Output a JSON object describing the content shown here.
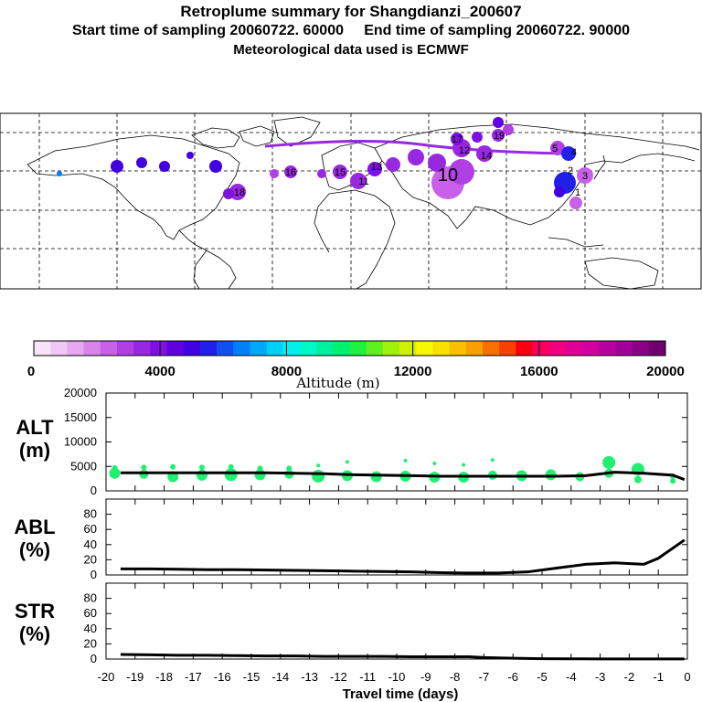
{
  "header": {
    "title": "Retroplume summary for Shangdianzi_200607",
    "subtitle": "Start time of sampling 20060722. 60000     End time of sampling 20060722. 90000",
    "met_line": "Meteorological data used is ECMWF"
  },
  "colorbar": {
    "label": "Altitude (m)",
    "ticks": [
      "0",
      "4000",
      "8000",
      "12000",
      "16000",
      "20000"
    ],
    "range": [
      0,
      20000
    ],
    "colors": [
      "#f8e4f8",
      "#f0c8f4",
      "#e6a8f0",
      "#d884ec",
      "#c860e8",
      "#b040e4",
      "#9828e0",
      "#8010e0",
      "#6000e0",
      "#4000e0",
      "#2020e8",
      "#1050f0",
      "#0080f8",
      "#00a8f8",
      "#00d0f8",
      "#00f0f0",
      "#00f8c8",
      "#00f0a0",
      "#00f070",
      "#20f040",
      "#60f020",
      "#a0f010",
      "#d0f000",
      "#f8f800",
      "#f8e000",
      "#f8c000",
      "#f8a000",
      "#f87000",
      "#f84000",
      "#f80010",
      "#f80060",
      "#f00080",
      "#e00098",
      "#d000a0",
      "#b800a0",
      "#a00098",
      "#880088",
      "#700070"
    ]
  },
  "map_markers": [
    {
      "label": "10"
    },
    {
      "label": "11"
    },
    {
      "label": "12"
    },
    {
      "label": "13"
    },
    {
      "label": "14"
    },
    {
      "label": "15"
    },
    {
      "label": "16"
    },
    {
      "label": "17"
    },
    {
      "label": "18"
    },
    {
      "label": "19"
    },
    {
      "label": "5"
    },
    {
      "label": "4"
    },
    {
      "label": "3"
    },
    {
      "label": "2"
    },
    {
      "label": "1"
    }
  ],
  "chart_data": [
    {
      "type": "line",
      "panel": "ALT",
      "ylabel": "ALT\n(m)",
      "ylabel_line1": "ALT",
      "ylabel_line2": "(m)",
      "ylim": [
        0,
        20000
      ],
      "yticks": [
        0,
        5000,
        10000,
        15000,
        20000
      ],
      "x": [
        -19.5,
        -18.5,
        -17.5,
        -16.5,
        -15.5,
        -14.5,
        -13.5,
        -12.5,
        -11.5,
        -10.5,
        -9.5,
        -8.5,
        -7.5,
        -6.5,
        -5.5,
        -4.5,
        -3.5,
        -2.5,
        -1.5,
        -0.5,
        -0.1
      ],
      "series": [
        {
          "name": "mean altitude",
          "values": [
            3700,
            3700,
            3700,
            3700,
            3700,
            3700,
            3600,
            3500,
            3300,
            3200,
            3100,
            3000,
            3000,
            3000,
            3000,
            3000,
            3100,
            3800,
            3600,
            3200,
            2300
          ]
        }
      ],
      "scatter": [
        {
          "x": -19.7,
          "y": 3600,
          "s": 6
        },
        {
          "x": -19.7,
          "y": 4700,
          "s": 3
        },
        {
          "x": -18.7,
          "y": 3400,
          "s": 5
        },
        {
          "x": -18.7,
          "y": 4800,
          "s": 3
        },
        {
          "x": -17.7,
          "y": 2900,
          "s": 6
        },
        {
          "x": -17.7,
          "y": 4900,
          "s": 3
        },
        {
          "x": -16.7,
          "y": 3200,
          "s": 6
        },
        {
          "x": -16.7,
          "y": 4800,
          "s": 3
        },
        {
          "x": -15.7,
          "y": 3300,
          "s": 7
        },
        {
          "x": -15.7,
          "y": 4900,
          "s": 3
        },
        {
          "x": -14.7,
          "y": 3300,
          "s": 6
        },
        {
          "x": -14.7,
          "y": 4600,
          "s": 3
        },
        {
          "x": -13.7,
          "y": 3400,
          "s": 5
        },
        {
          "x": -13.7,
          "y": 4600,
          "s": 3
        },
        {
          "x": -12.7,
          "y": 3000,
          "s": 7
        },
        {
          "x": -12.7,
          "y": 5200,
          "s": 2
        },
        {
          "x": -11.7,
          "y": 3100,
          "s": 6
        },
        {
          "x": -11.7,
          "y": 5900,
          "s": 2
        },
        {
          "x": -10.7,
          "y": 2900,
          "s": 6
        },
        {
          "x": -9.7,
          "y": 6200,
          "s": 2
        },
        {
          "x": -9.7,
          "y": 3000,
          "s": 6
        },
        {
          "x": -8.7,
          "y": 2800,
          "s": 6
        },
        {
          "x": -8.7,
          "y": 5600,
          "s": 2
        },
        {
          "x": -7.7,
          "y": 2800,
          "s": 6
        },
        {
          "x": -7.7,
          "y": 5300,
          "s": 2
        },
        {
          "x": -6.7,
          "y": 3200,
          "s": 5
        },
        {
          "x": -6.7,
          "y": 6300,
          "s": 2
        },
        {
          "x": -5.7,
          "y": 3100,
          "s": 6
        },
        {
          "x": -4.7,
          "y": 3300,
          "s": 6
        },
        {
          "x": -3.7,
          "y": 2900,
          "s": 5
        },
        {
          "x": -2.7,
          "y": 3600,
          "s": 5
        },
        {
          "x": -2.7,
          "y": 5800,
          "s": 7
        },
        {
          "x": -1.7,
          "y": 4400,
          "s": 7
        },
        {
          "x": -1.7,
          "y": 2300,
          "s": 4
        },
        {
          "x": -0.5,
          "y": 3000,
          "s": 3
        },
        {
          "x": -0.5,
          "y": 2000,
          "s": 3
        }
      ]
    },
    {
      "type": "line",
      "panel": "ABL",
      "ylabel": "ABL\n(%)",
      "ylabel_line1": "ABL",
      "ylabel_line2": "(%)",
      "ylim": [
        0,
        100
      ],
      "yticks": [
        0,
        20,
        40,
        60,
        80
      ],
      "x": [
        -19.5,
        -18.5,
        -17.5,
        -16.5,
        -15.5,
        -14.5,
        -13.5,
        -12.5,
        -11.5,
        -10.5,
        -9.5,
        -8.5,
        -7.5,
        -6.5,
        -5.5,
        -4.5,
        -3.5,
        -2.5,
        -1.5,
        -1.0,
        -0.1
      ],
      "series": [
        {
          "name": "ABL fraction",
          "values": [
            8,
            8,
            7.5,
            7,
            7,
            6.5,
            6,
            5.5,
            5,
            4.5,
            4,
            3,
            2.5,
            2.5,
            4,
            9,
            14,
            16,
            14,
            22,
            46
          ]
        }
      ]
    },
    {
      "type": "line",
      "panel": "STR",
      "ylabel": "STR\n(%)",
      "ylabel_line1": "STR",
      "ylabel_line2": "(%)",
      "ylim": [
        0,
        100
      ],
      "yticks": [
        0,
        20,
        40,
        60,
        80
      ],
      "x": [
        -19.5,
        -18.5,
        -17.5,
        -16.5,
        -15.5,
        -14.5,
        -13.5,
        -12.5,
        -11.5,
        -10.5,
        -9.5,
        -8.5,
        -7.5,
        -7.0,
        -6.0,
        -5.0,
        -4.0,
        -3.0,
        -2.0,
        -1.0,
        -0.1
      ],
      "series": [
        {
          "name": "stratospheric fraction",
          "values": [
            6,
            5.5,
            5,
            5,
            4.5,
            4,
            4,
            3.5,
            3.5,
            3.5,
            3,
            3,
            3,
            2,
            1,
            0.5,
            0.3,
            0.2,
            0.1,
            0.1,
            0.1
          ]
        }
      ]
    }
  ],
  "x_axis": {
    "xlabel": "Travel time (days)",
    "range": [
      -20,
      0
    ],
    "ticks": [
      "-20",
      "-19",
      "-18",
      "-17",
      "-16",
      "-15",
      "-14",
      "-13",
      "-12",
      "-11",
      "-10",
      "-9",
      "-8",
      "-7",
      "-6",
      "-5",
      "-4",
      "-3",
      "-2",
      "-1",
      "0"
    ]
  }
}
